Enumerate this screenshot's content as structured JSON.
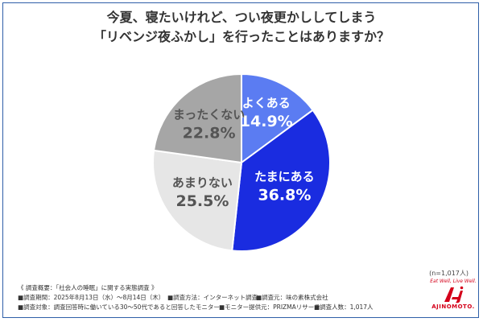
{
  "title": {
    "line1": "今夏、寝たいけれど、つい夜更かししてしまう",
    "line2": "「リベンジ夜ふかし」を行ったことはありますか？"
  },
  "chart_data": {
    "type": "pie",
    "slices": [
      {
        "label": "よくある",
        "value": 14.9,
        "display": "14.9%",
        "color": "#5b7cf2"
      },
      {
        "label": "たまにある",
        "value": 36.8,
        "display": "36.8%",
        "color": "#1a2ce0"
      },
      {
        "label": "あまりない",
        "value": 25.5,
        "display": "25.5%",
        "color": "#e6e6e6"
      },
      {
        "label": "まったくない",
        "value": 22.8,
        "display": "22.8%",
        "color": "#a6a6a6"
      }
    ]
  },
  "sample_size": "(n=1,017人)",
  "footer": {
    "heading": "《 調査概要：「社会人の睡眠」に関する実態調査 》",
    "period": "■調査期間：2025年8月13日（水）〜8月14日（木）",
    "method": "■調査方法：インターネット調査",
    "org": "■調査元：味の素株式会社",
    "target": "■調査対象：調査回答時に働いている30〜50代であると回答したモニター",
    "provider": "■モニター提供元：PRIZMAリサーチ",
    "count": "■調査人数：1,017人"
  },
  "brand": {
    "tagline": "Eat Well, Live Well.",
    "name": "AJINOMOTO."
  },
  "colors": {
    "accent_red": "#d4001a",
    "label_dark_gray": "#555555",
    "label_light": "#ffffff"
  }
}
